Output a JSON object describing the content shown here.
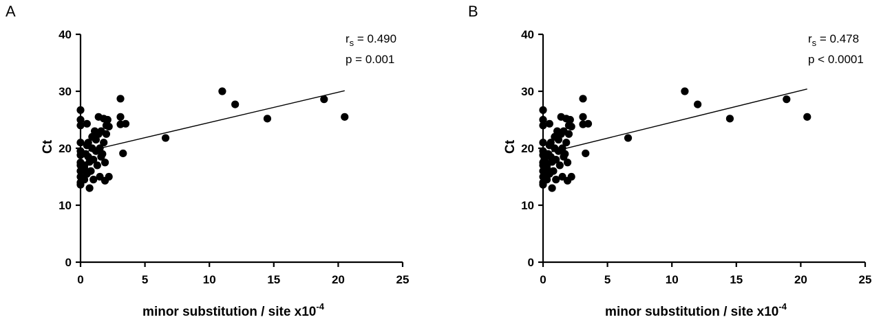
{
  "chart_data": [
    {
      "panel": "A",
      "type": "scatter",
      "xlabel": "minor substitution / site x10",
      "xlabel_exp": "-4",
      "ylabel": "Ct",
      "xlim": [
        0,
        25
      ],
      "ylim": [
        0,
        40
      ],
      "x_ticks": [
        "0",
        "5",
        "10",
        "15",
        "20",
        "25"
      ],
      "y_ticks": [
        "0",
        "10",
        "20",
        "30",
        "40"
      ],
      "stats": {
        "r_label": "r",
        "r_sub": "s",
        "r_value": " = 0.490",
        "p_text": "p = 0.001"
      },
      "fit_line": {
        "x": [
          0.2,
          20.5
        ],
        "y": [
          19.3,
          30.1
        ]
      },
      "points": [
        [
          0.0,
          26.7
        ],
        [
          0.0,
          25.0
        ],
        [
          0.0,
          24.0
        ],
        [
          0.0,
          21.0
        ],
        [
          0.0,
          18.8
        ],
        [
          0.0,
          17.5
        ],
        [
          0.0,
          16.0
        ],
        [
          0.0,
          15.0
        ],
        [
          0.0,
          14.0
        ],
        [
          0.0,
          13.6
        ],
        [
          0.0,
          19.5
        ],
        [
          0.0,
          17.0
        ],
        [
          0.3,
          17.0
        ],
        [
          0.3,
          14.5
        ],
        [
          0.3,
          16.5
        ],
        [
          0.4,
          19.0
        ],
        [
          0.5,
          24.3
        ],
        [
          0.5,
          20.5
        ],
        [
          0.5,
          15.5
        ],
        [
          0.6,
          21.0
        ],
        [
          0.6,
          18.5
        ],
        [
          0.7,
          13.0
        ],
        [
          0.7,
          17.6
        ],
        [
          0.8,
          16.0
        ],
        [
          0.9,
          22.0
        ],
        [
          0.9,
          20.0
        ],
        [
          1.0,
          14.5
        ],
        [
          1.0,
          18.0
        ],
        [
          1.1,
          23.0
        ],
        [
          1.2,
          19.5
        ],
        [
          1.2,
          21.5
        ],
        [
          1.3,
          17.0
        ],
        [
          1.4,
          25.5
        ],
        [
          1.4,
          22.5
        ],
        [
          1.5,
          15.0
        ],
        [
          1.5,
          20.0
        ],
        [
          1.6,
          23.0
        ],
        [
          1.6,
          18.5
        ],
        [
          1.7,
          19.0
        ],
        [
          1.8,
          25.2
        ],
        [
          1.8,
          21.0
        ],
        [
          1.9,
          17.5
        ],
        [
          1.9,
          14.3
        ],
        [
          2.0,
          24.0
        ],
        [
          2.0,
          22.5
        ],
        [
          2.1,
          25.0
        ],
        [
          2.2,
          23.8
        ],
        [
          2.2,
          15.0
        ],
        [
          3.1,
          28.7
        ],
        [
          3.1,
          24.2
        ],
        [
          3.1,
          25.5
        ],
        [
          3.3,
          19.1
        ],
        [
          3.5,
          24.3
        ],
        [
          6.6,
          21.8
        ],
        [
          11.0,
          30.0
        ],
        [
          12.0,
          27.7
        ],
        [
          14.5,
          25.2
        ],
        [
          18.9,
          28.6
        ],
        [
          20.5,
          25.5
        ]
      ]
    },
    {
      "panel": "B",
      "type": "scatter",
      "xlabel": "minor substitution / site x10",
      "xlabel_exp": "-4",
      "ylabel": "Ct",
      "xlim": [
        0,
        25
      ],
      "ylim": [
        0,
        40
      ],
      "x_ticks": [
        "0",
        "5",
        "10",
        "15",
        "20",
        "25"
      ],
      "y_ticks": [
        "0",
        "10",
        "20",
        "30",
        "40"
      ],
      "stats": {
        "r_label": "r",
        "r_sub": "s",
        "r_value": " = 0.478",
        "p_text": "p < 0.0001"
      },
      "fit_line": {
        "x": [
          0.2,
          20.5
        ],
        "y": [
          19.1,
          30.4
        ]
      },
      "points": [
        [
          0.0,
          26.7
        ],
        [
          0.0,
          25.0
        ],
        [
          0.0,
          24.0
        ],
        [
          0.0,
          21.0
        ],
        [
          0.0,
          18.8
        ],
        [
          0.0,
          17.5
        ],
        [
          0.0,
          16.0
        ],
        [
          0.0,
          15.0
        ],
        [
          0.0,
          14.0
        ],
        [
          0.0,
          13.6
        ],
        [
          0.0,
          19.5
        ],
        [
          0.0,
          17.0
        ],
        [
          0.1,
          18.0
        ],
        [
          0.1,
          16.5
        ],
        [
          0.1,
          15.5
        ],
        [
          0.2,
          19.0
        ],
        [
          0.2,
          17.5
        ],
        [
          0.2,
          14.5
        ],
        [
          0.3,
          17.0
        ],
        [
          0.3,
          14.5
        ],
        [
          0.3,
          16.5
        ],
        [
          0.4,
          19.0
        ],
        [
          0.5,
          24.3
        ],
        [
          0.5,
          20.5
        ],
        [
          0.5,
          15.5
        ],
        [
          0.6,
          21.0
        ],
        [
          0.6,
          18.5
        ],
        [
          0.7,
          13.0
        ],
        [
          0.7,
          17.6
        ],
        [
          0.8,
          16.0
        ],
        [
          0.9,
          22.0
        ],
        [
          0.9,
          20.0
        ],
        [
          1.0,
          14.5
        ],
        [
          1.0,
          18.0
        ],
        [
          1.1,
          23.0
        ],
        [
          1.2,
          19.5
        ],
        [
          1.2,
          21.5
        ],
        [
          1.3,
          17.0
        ],
        [
          1.4,
          25.5
        ],
        [
          1.4,
          22.5
        ],
        [
          1.5,
          15.0
        ],
        [
          1.5,
          20.0
        ],
        [
          1.6,
          23.0
        ],
        [
          1.6,
          18.5
        ],
        [
          1.7,
          19.0
        ],
        [
          1.8,
          25.2
        ],
        [
          1.8,
          21.0
        ],
        [
          1.9,
          17.5
        ],
        [
          1.9,
          14.3
        ],
        [
          2.0,
          24.0
        ],
        [
          2.0,
          22.5
        ],
        [
          2.1,
          25.0
        ],
        [
          2.2,
          23.8
        ],
        [
          2.2,
          15.0
        ],
        [
          3.1,
          28.7
        ],
        [
          3.1,
          24.2
        ],
        [
          3.1,
          25.5
        ],
        [
          3.3,
          19.1
        ],
        [
          3.5,
          24.3
        ],
        [
          6.6,
          21.8
        ],
        [
          11.0,
          30.0
        ],
        [
          12.0,
          27.7
        ],
        [
          14.5,
          25.2
        ],
        [
          18.9,
          28.6
        ],
        [
          20.5,
          25.5
        ]
      ]
    }
  ]
}
